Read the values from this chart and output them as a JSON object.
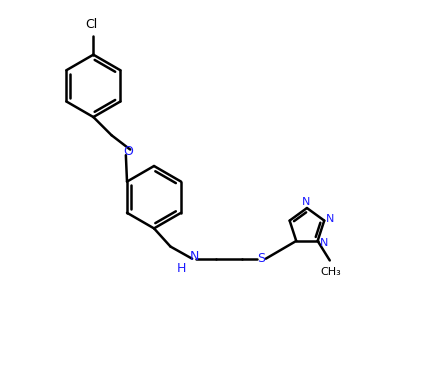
{
  "background_color": "#ffffff",
  "line_color": "#000000",
  "bond_width": 1.8,
  "figsize": [
    4.38,
    3.71
  ],
  "dpi": 100,
  "xlim": [
    0,
    10
  ],
  "ylim": [
    0,
    8.5
  ]
}
